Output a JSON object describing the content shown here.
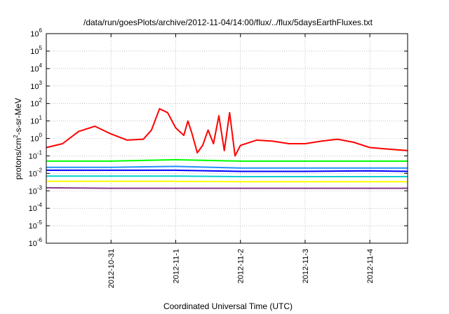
{
  "chart_data": {
    "type": "line",
    "title": "/data/run/goesPlots/archive/2012-11-04/14:00/flux/../flux/5daysEarthFluxes.txt",
    "xlabel": "Coordinated Universal Time (UTC)",
    "ylabel": {
      "prefix": "protons/cm",
      "sup": "2",
      "suffix": "-s-sr-MeV"
    },
    "yscale": "log",
    "ylim": [
      1e-06,
      1000000.0
    ],
    "ytick_labels": [
      {
        "base": "10",
        "exp": "-6"
      },
      {
        "base": "10",
        "exp": "-5"
      },
      {
        "base": "10",
        "exp": "-4"
      },
      {
        "base": "10",
        "exp": "-3"
      },
      {
        "base": "10",
        "exp": "-2"
      },
      {
        "base": "10",
        "exp": "-1"
      },
      {
        "base": "10",
        "exp": "0"
      },
      {
        "base": "10",
        "exp": "1"
      },
      {
        "base": "10",
        "exp": "2"
      },
      {
        "base": "10",
        "exp": "3"
      },
      {
        "base": "10",
        "exp": "4"
      },
      {
        "base": "10",
        "exp": "5"
      },
      {
        "base": "10",
        "exp": "6"
      }
    ],
    "xlim": [
      "2012-10-30 00:00",
      "2012-11-04 14:00"
    ],
    "xtick_labels": [
      "2012-10-31",
      "2012-11-1",
      "2012-11-2",
      "2012-11-3",
      "2012-11-4"
    ],
    "grid": true,
    "series": [
      {
        "color": "#ff0000",
        "x": [
          "2012-10-30 00:00",
          "2012-10-30 06:00",
          "2012-10-30 12:00",
          "2012-10-30 18:00",
          "2012-10-31 00:00",
          "2012-10-31 06:00",
          "2012-10-31 12:00",
          "2012-10-31 15:00",
          "2012-10-31 18:00",
          "2012-10-31 21:00",
          "2012-11-01 00:00",
          "2012-11-01 03:00",
          "2012-11-01 04:30",
          "2012-11-01 06:00",
          "2012-11-01 08:00",
          "2012-11-01 10:00",
          "2012-11-01 12:00",
          "2012-11-01 14:00",
          "2012-11-01 16:00",
          "2012-11-01 18:00",
          "2012-11-01 20:00",
          "2012-11-01 22:00",
          "2012-11-02 00:00",
          "2012-11-02 06:00",
          "2012-11-02 12:00",
          "2012-11-02 18:00",
          "2012-11-03 00:00",
          "2012-11-03 06:00",
          "2012-11-03 12:00",
          "2012-11-03 18:00",
          "2012-11-04 00:00",
          "2012-11-04 06:00",
          "2012-11-04 14:00"
        ],
        "y": [
          0.3,
          0.5,
          2.5,
          5,
          1.8,
          0.8,
          0.9,
          3,
          50,
          30,
          4,
          1.5,
          10,
          2,
          0.15,
          0.4,
          3,
          0.5,
          20,
          0.2,
          30,
          0.1,
          0.4,
          0.8,
          0.7,
          0.5,
          0.5,
          0.7,
          0.9,
          0.6,
          0.3,
          0.25,
          0.2
        ]
      },
      {
        "color": "#00ff00",
        "x": [
          "2012-10-30 00:00",
          "2012-10-31 00:00",
          "2012-11-01 00:00",
          "2012-11-02 00:00",
          "2012-11-03 00:00",
          "2012-11-04 00:00",
          "2012-11-04 14:00"
        ],
        "y": [
          0.05,
          0.05,
          0.06,
          0.05,
          0.05,
          0.05,
          0.05
        ]
      },
      {
        "color": "#0000ff",
        "x": [
          "2012-10-30 00:00",
          "2012-10-31 00:00",
          "2012-11-01 00:00",
          "2012-11-02 00:00",
          "2012-11-03 00:00",
          "2012-11-04 00:00",
          "2012-11-04 14:00"
        ],
        "y": [
          0.015,
          0.015,
          0.015,
          0.013,
          0.013,
          0.014,
          0.013
        ]
      },
      {
        "color": "#1e90ff",
        "x": [
          "2012-10-30 00:00",
          "2012-10-31 00:00",
          "2012-11-01 00:00",
          "2012-11-02 00:00",
          "2012-11-03 00:00",
          "2012-11-04 00:00",
          "2012-11-04 14:00"
        ],
        "y": [
          0.022,
          0.022,
          0.025,
          0.02,
          0.02,
          0.02,
          0.02
        ]
      },
      {
        "color": "#00ced1",
        "x": [
          "2012-10-30 00:00",
          "2012-10-31 00:00",
          "2012-11-01 00:00",
          "2012-11-02 00:00",
          "2012-11-03 00:00",
          "2012-11-04 00:00",
          "2012-11-04 14:00"
        ],
        "y": [
          0.007,
          0.007,
          0.007,
          0.0065,
          0.0065,
          0.0065,
          0.0065
        ]
      },
      {
        "color": "#ffff00",
        "x": [
          "2012-10-30 00:00",
          "2012-10-31 00:00",
          "2012-11-01 00:00",
          "2012-11-02 00:00",
          "2012-11-03 00:00",
          "2012-11-04 00:00",
          "2012-11-04 14:00"
        ],
        "y": [
          0.0035,
          0.0035,
          0.0035,
          0.0033,
          0.0033,
          0.0033,
          0.0033
        ]
      },
      {
        "color": "#8b3a8b",
        "x": [
          "2012-10-30 00:00",
          "2012-10-31 00:00",
          "2012-11-01 00:00",
          "2012-11-02 00:00",
          "2012-11-03 00:00",
          "2012-11-04 00:00",
          "2012-11-04 14:00"
        ],
        "y": [
          0.0015,
          0.0014,
          0.0014,
          0.0014,
          0.0014,
          0.0014,
          0.0014
        ]
      }
    ]
  }
}
